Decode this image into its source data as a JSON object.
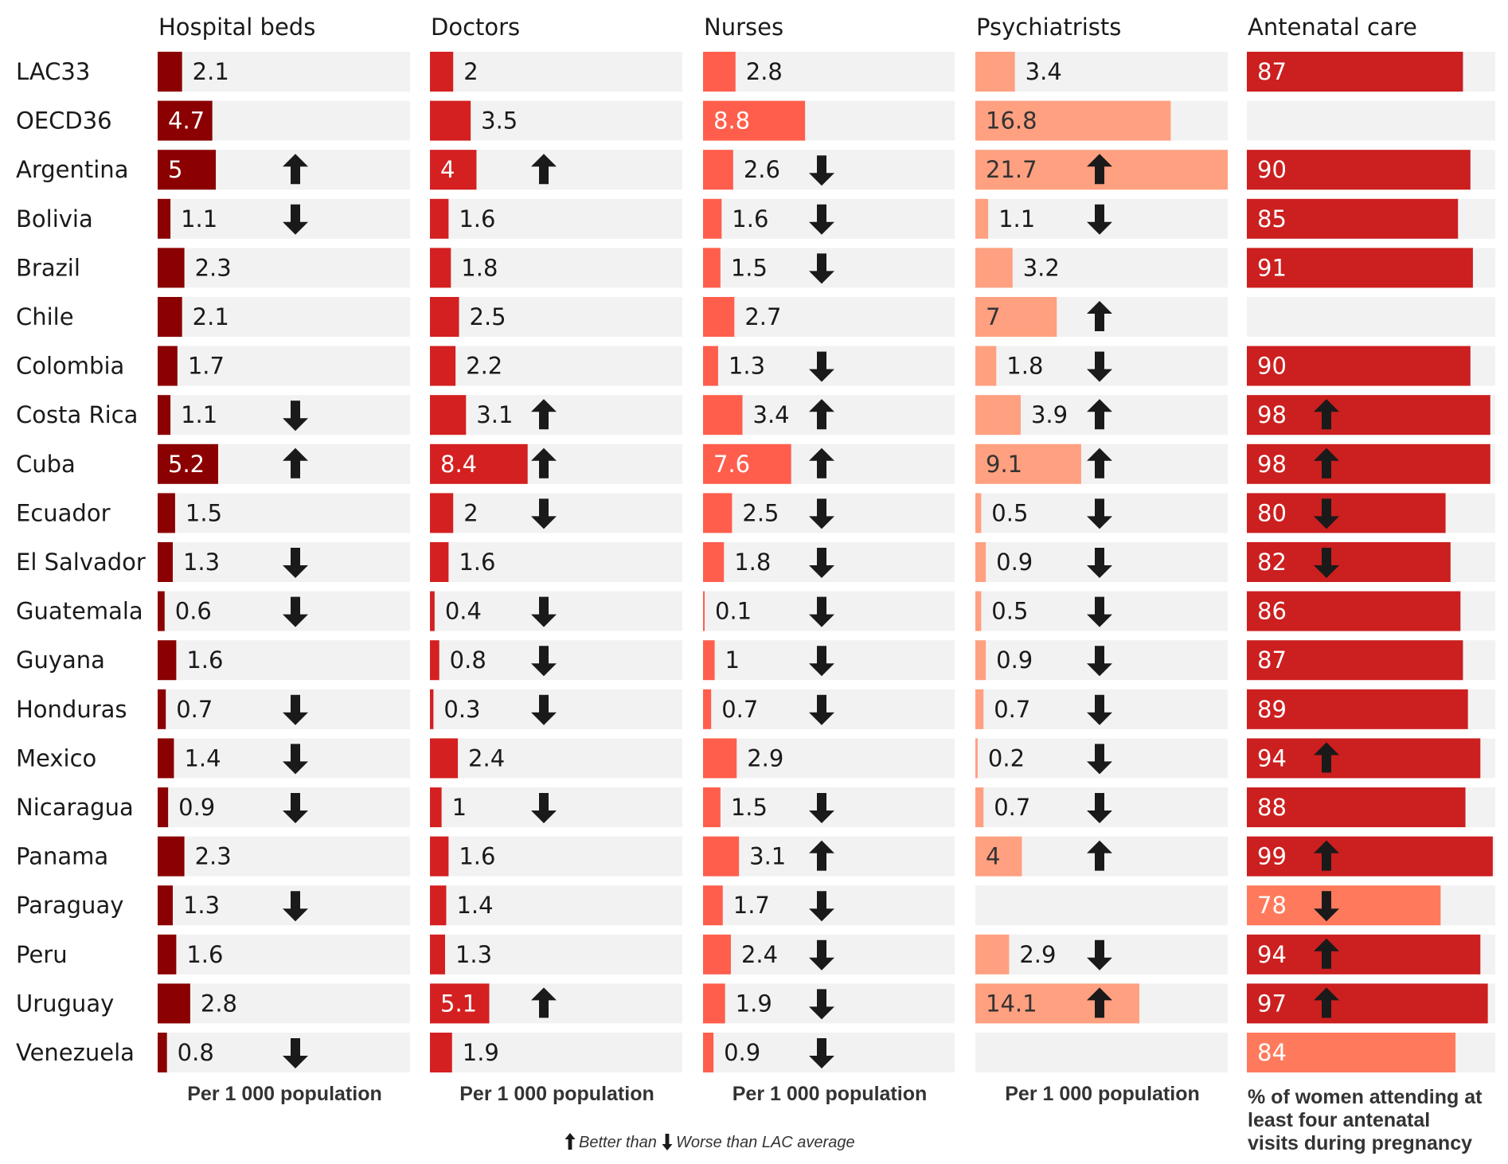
{
  "chart_data": {
    "type": "bar",
    "layout": "small-multiples",
    "countries": [
      "LAC33",
      "OECD36",
      "Argentina",
      "Bolivia",
      "Brazil",
      "Chile",
      "Colombia",
      "Costa Rica",
      "Cuba",
      "Ecuador",
      "El Salvador",
      "Guatemala",
      "Guyana",
      "Honduras",
      "Mexico",
      "Nicaragua",
      "Panama",
      "Paraguay",
      "Peru",
      "Uruguay",
      "Venezuela"
    ],
    "panels": [
      {
        "title": "Hospital beds",
        "unit_label": "Per 1 000 population",
        "xlim": [
          0,
          21.7
        ],
        "bar_color": "#8b0000",
        "label_color_inside": "#ffffff",
        "values": [
          2.1,
          4.7,
          5,
          1.1,
          2.3,
          2.1,
          1.7,
          1.1,
          5.2,
          1.5,
          1.3,
          0.6,
          1.6,
          0.7,
          1.4,
          0.9,
          2.3,
          1.3,
          1.6,
          2.8,
          0.8
        ],
        "labels": [
          "2.1",
          "4.7",
          "5",
          "1.1",
          "2.3",
          "2.1",
          "1.7",
          "1.1",
          "5.2",
          "1.5",
          "1.3",
          "0.6",
          "1.6",
          "0.7",
          "1.4",
          "0.9",
          "2.3",
          "1.3",
          "1.6",
          "2.8",
          "0.8"
        ],
        "inside": [
          false,
          true,
          true,
          false,
          false,
          false,
          false,
          false,
          true,
          false,
          false,
          false,
          false,
          false,
          false,
          false,
          false,
          false,
          false,
          false,
          false
        ],
        "arrows": [
          null,
          null,
          "up",
          "down",
          null,
          null,
          null,
          "down",
          "up",
          null,
          "down",
          "down",
          null,
          "down",
          "down",
          "down",
          null,
          "down",
          null,
          null,
          "down"
        ]
      },
      {
        "title": "Doctors",
        "unit_label": "Per 1 000 population",
        "xlim": [
          0,
          21.7
        ],
        "bar_color": "#d42020",
        "label_color_inside": "#ffffff",
        "values": [
          2,
          3.5,
          4,
          1.6,
          1.8,
          2.5,
          2.2,
          3.1,
          8.4,
          2,
          1.6,
          0.4,
          0.8,
          0.3,
          2.4,
          1,
          1.6,
          1.4,
          1.3,
          5.1,
          1.9
        ],
        "labels": [
          "2",
          "3.5",
          "4",
          "1.6",
          "1.8",
          "2.5",
          "2.2",
          "3.1",
          "8.4",
          "2",
          "1.6",
          "0.4",
          "0.8",
          "0.3",
          "2.4",
          "1",
          "1.6",
          "1.4",
          "1.3",
          "5.1",
          "1.9"
        ],
        "inside": [
          false,
          false,
          true,
          false,
          false,
          false,
          false,
          false,
          true,
          false,
          false,
          false,
          false,
          false,
          false,
          false,
          false,
          false,
          false,
          true,
          false
        ],
        "arrows": [
          null,
          null,
          "up",
          null,
          null,
          null,
          null,
          "up",
          "up",
          "down",
          null,
          "down",
          "down",
          "down",
          null,
          "down",
          null,
          null,
          null,
          "up",
          null
        ]
      },
      {
        "title": "Nurses",
        "unit_label": "Per 1 000 population",
        "xlim": [
          0,
          21.7
        ],
        "bar_color": "#ff5e4d",
        "label_color_inside": "#ffffff",
        "values": [
          2.8,
          8.8,
          2.6,
          1.6,
          1.5,
          2.7,
          1.3,
          3.4,
          7.6,
          2.5,
          1.8,
          0.1,
          1,
          0.7,
          2.9,
          1.5,
          3.1,
          1.7,
          2.4,
          1.9,
          0.9
        ],
        "labels": [
          "2.8",
          "8.8",
          "2.6",
          "1.6",
          "1.5",
          "2.7",
          "1.3",
          "3.4",
          "7.6",
          "2.5",
          "1.8",
          "0.1",
          "1",
          "0.7",
          "2.9",
          "1.5",
          "3.1",
          "1.7",
          "2.4",
          "1.9",
          "0.9"
        ],
        "inside": [
          false,
          true,
          false,
          false,
          false,
          false,
          false,
          false,
          true,
          false,
          false,
          false,
          false,
          false,
          false,
          false,
          false,
          false,
          false,
          false,
          false
        ],
        "arrows": [
          null,
          null,
          "down",
          "down",
          "down",
          null,
          "down",
          "up",
          "up",
          "down",
          "down",
          "down",
          "down",
          "down",
          null,
          "down",
          "up",
          "down",
          "down",
          "down",
          "down"
        ]
      },
      {
        "title": "Psychiatrists",
        "unit_label": "Per 1 000 population",
        "xlim": [
          0,
          21.7
        ],
        "bar_color": "#ffa080",
        "label_color_inside": "#333333",
        "values": [
          3.4,
          16.8,
          21.7,
          1.1,
          3.2,
          7,
          1.8,
          3.9,
          9.1,
          0.5,
          0.9,
          0.5,
          0.9,
          0.7,
          0.2,
          0.7,
          4,
          null,
          2.9,
          14.1,
          null
        ],
        "labels": [
          "3.4",
          "16.8",
          "21.7",
          "1.1",
          "3.2",
          "7",
          "1.8",
          "3.9",
          "9.1",
          "0.5",
          "0.9",
          "0.5",
          "0.9",
          "0.7",
          "0.2",
          "0.7",
          "4",
          "",
          "2.9",
          "14.1",
          ""
        ],
        "inside": [
          false,
          true,
          true,
          false,
          false,
          true,
          false,
          false,
          true,
          false,
          false,
          false,
          false,
          false,
          false,
          false,
          true,
          false,
          false,
          true,
          false
        ],
        "arrows": [
          null,
          null,
          "up",
          "down",
          null,
          "up",
          "down",
          "up",
          "up",
          "down",
          "down",
          "down",
          "down",
          "down",
          "down",
          "down",
          "up",
          null,
          "down",
          "up",
          null
        ]
      },
      {
        "title": "Antenatal care",
        "unit_label_lines": [
          "% of women attending at",
          "least four antenatal",
          "visits during pregnancy"
        ],
        "xlim": [
          0,
          100
        ],
        "bar_color": "#cc1f1f",
        "bar_color_alt": "#ff7a5c",
        "label_color_inside": "#ffffff",
        "values": [
          87,
          null,
          90,
          85,
          91,
          null,
          90,
          98,
          98,
          80,
          82,
          86,
          87,
          89,
          94,
          88,
          99,
          78,
          94,
          97,
          84
        ],
        "labels": [
          "87",
          "",
          "90",
          "85",
          "91",
          "",
          "90",
          "98",
          "98",
          "80",
          "82",
          "86",
          "87",
          "89",
          "94",
          "88",
          "99",
          "78",
          "94",
          "97",
          "84"
        ],
        "inside": [
          true,
          true,
          true,
          true,
          true,
          true,
          true,
          true,
          true,
          true,
          true,
          true,
          true,
          true,
          true,
          true,
          true,
          true,
          true,
          true,
          true
        ],
        "alt_color": [
          false,
          false,
          false,
          false,
          false,
          false,
          false,
          false,
          false,
          false,
          false,
          false,
          false,
          false,
          false,
          false,
          false,
          true,
          false,
          false,
          true
        ],
        "arrows": [
          null,
          null,
          null,
          null,
          null,
          null,
          null,
          "up",
          "up",
          "down",
          "down",
          null,
          null,
          null,
          "up",
          null,
          "up",
          "down",
          "up",
          "up",
          null
        ]
      }
    ],
    "legend": {
      "better_text": "Better than",
      "worse_text": "Worse than LAC average"
    }
  }
}
